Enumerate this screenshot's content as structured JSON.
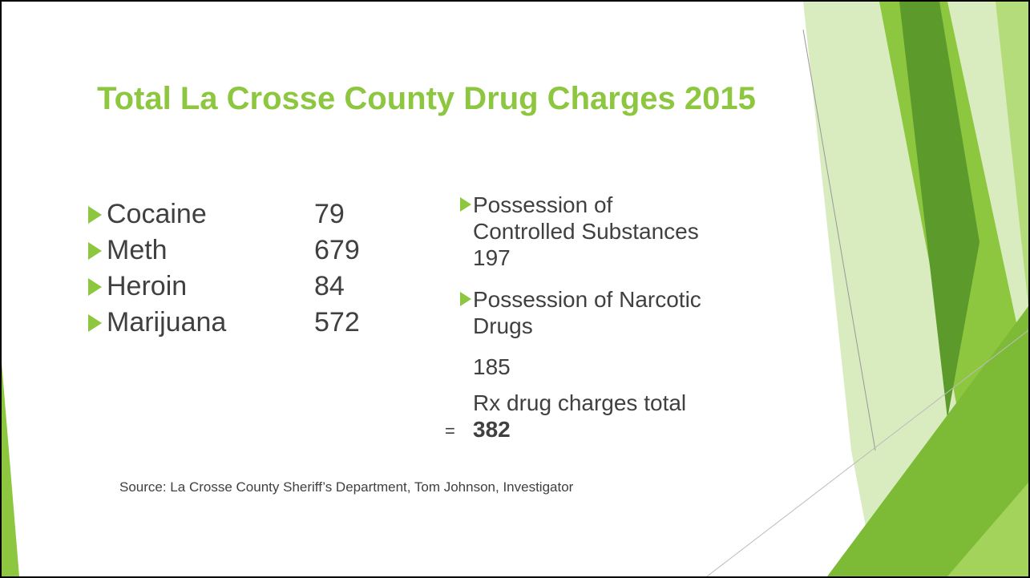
{
  "slide": {
    "title": "Total La Crosse County Drug Charges 2015",
    "left_list": [
      {
        "name": "Cocaine",
        "count": 79
      },
      {
        "name": "Meth",
        "count": 679
      },
      {
        "name": "Heroin",
        "count": 84
      },
      {
        "name": "Marijuana",
        "count": 572
      }
    ],
    "right_list": [
      {
        "text": "Possession of Controlled Substances",
        "count": 197
      },
      {
        "text": "Possession of Narcotic Drugs",
        "count": 185
      }
    ],
    "total_label": "Rx drug charges total",
    "total_sign": "=",
    "total_value": 382,
    "source": "Source: La Crosse County Sheriff’s Department, Tom Johnson, Investigator"
  }
}
